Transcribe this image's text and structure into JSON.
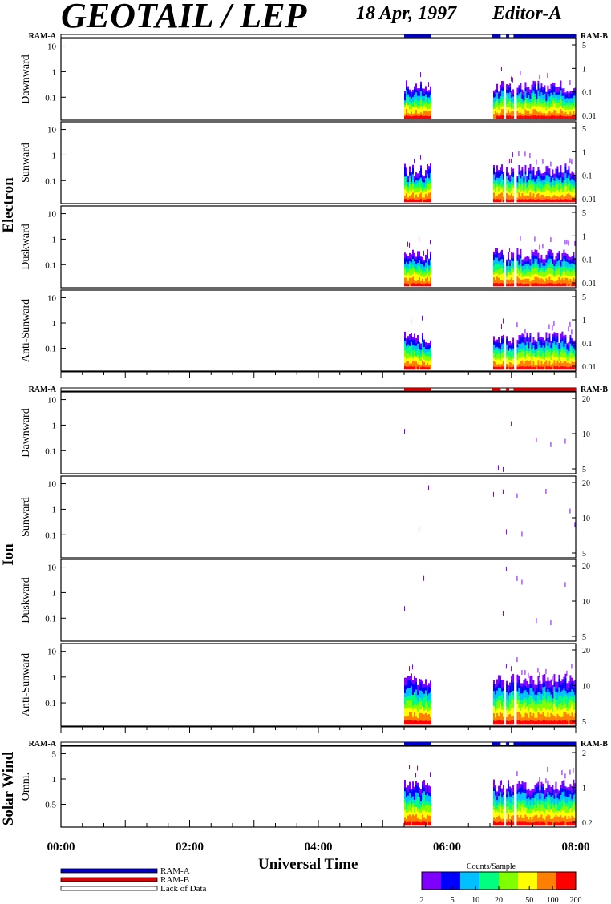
{
  "header": {
    "title": "GEOTAIL / LEP",
    "date": "18 Apr, 1997",
    "editor": "Editor-A"
  },
  "chart_data": {
    "type": "heatmap",
    "xlabel": "Universal Time",
    "x_ticks": [
      "00:00",
      "02:00",
      "04:00",
      "06:00",
      "08:00"
    ],
    "xlim": [
      "00:00",
      "08:00"
    ],
    "data_intervals": [
      [
        "05:20",
        "05:45"
      ],
      [
        "06:43",
        "06:52"
      ],
      [
        "06:55",
        "07:02"
      ],
      [
        "07:05",
        "08:00"
      ]
    ],
    "groups": [
      {
        "name": "Electron",
        "mode_bar": {
          "left": "RAM-A",
          "right": "RAM-B",
          "color": "#0000cc",
          "segments": [
            [
              "05:20",
              "05:45"
            ],
            [
              "06:42",
              "06:50"
            ],
            [
              "06:55",
              "06:58"
            ],
            [
              "07:02",
              "08:00"
            ]
          ]
        },
        "left_ticks": [
          "10",
          "1",
          "0.1"
        ],
        "right_ticks": [
          "5",
          "1",
          "0.1",
          "0.01"
        ],
        "panels": [
          {
            "label": "Dawnward"
          },
          {
            "label": "Sunward"
          },
          {
            "label": "Duskward"
          },
          {
            "label": "Anti-Sunward"
          }
        ]
      },
      {
        "name": "Ion",
        "mode_bar": {
          "left": "RAM-A",
          "right": "RAM-B",
          "color": "#cc0000",
          "segments": [
            [
              "05:20",
              "05:45"
            ],
            [
              "06:42",
              "06:50"
            ],
            [
              "06:55",
              "06:58"
            ],
            [
              "07:02",
              "08:00"
            ]
          ]
        },
        "left_ticks": [
          "10",
          "1",
          "0.1"
        ],
        "right_ticks": [
          "20",
          "10",
          "5"
        ],
        "panels": [
          {
            "label": "Dawnward"
          },
          {
            "label": "Sunward"
          },
          {
            "label": "Duskward"
          },
          {
            "label": "Anti-Sunward"
          }
        ]
      },
      {
        "name": "Solar Wind",
        "mode_bar": {
          "left": "RAM-A",
          "right": "RAM-B",
          "color": "#0000cc",
          "segments": [
            [
              "05:20",
              "05:45"
            ],
            [
              "06:42",
              "06:50"
            ],
            [
              "06:55",
              "06:58"
            ],
            [
              "07:02",
              "08:00"
            ]
          ]
        },
        "left_ticks": [
          "5",
          "1",
          "0.5"
        ],
        "right_ticks": [
          "2",
          "1",
          "0.2"
        ],
        "panels": [
          {
            "label": "Omni."
          }
        ]
      }
    ],
    "legend": [
      {
        "label": "RAM-A",
        "color": "#0000cc"
      },
      {
        "label": "RAM-B",
        "color": "#dd0000"
      },
      {
        "label": "Lack of Data",
        "color": "#ffffff"
      }
    ],
    "colorbar": {
      "title": "Counts/Sample",
      "scale": "log",
      "ticks": [
        "2",
        "5",
        "10",
        "20",
        "50",
        "100",
        "200"
      ],
      "colors": [
        "#8000ff",
        "#0000ff",
        "#00c0ff",
        "#00ff80",
        "#80ff00",
        "#ffff00",
        "#ff8000",
        "#ff0000"
      ]
    }
  }
}
